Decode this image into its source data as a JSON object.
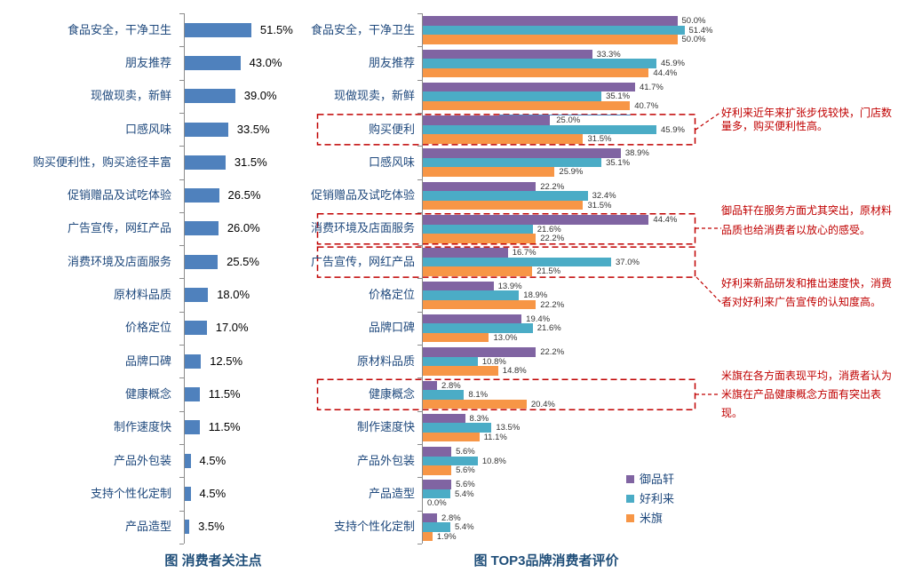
{
  "chart_data": [
    {
      "type": "bar",
      "orientation": "horizontal",
      "title": "图  消费者关注点",
      "categories": [
        "食品安全，干净卫生",
        "朋友推荐",
        "现做现卖，新鲜",
        "口感风味",
        "购买便利性，购买途径丰富",
        "促销赠品及试吃体验",
        "广告宣传，网红产品",
        "消费环境及店面服务",
        "原材料品质",
        "价格定位",
        "品牌口碑",
        "健康概念",
        "制作速度快",
        "产品外包装",
        "支持个性化定制",
        "产品造型"
      ],
      "values": [
        51.5,
        43.0,
        39.0,
        33.5,
        31.5,
        26.5,
        26.0,
        25.5,
        18.0,
        17.0,
        12.5,
        11.5,
        11.5,
        4.5,
        4.5,
        3.5
      ],
      "value_labels": [
        "51.5%",
        "43.0%",
        "39.0%",
        "33.5%",
        "31.5%",
        "26.5%",
        "26.0%",
        "25.5%",
        "18.0%",
        "17.0%",
        "12.5%",
        "11.5%",
        "11.5%",
        "4.5%",
        "4.5%",
        "3.5%"
      ],
      "bar_color": "#4F81BD",
      "grid": false,
      "value_labels_shown": true
    },
    {
      "type": "bar",
      "orientation": "horizontal",
      "title": "图 TOP3品牌消费者评价",
      "categories": [
        "食品安全，干净卫生",
        "朋友推荐",
        "现做现卖，新鲜",
        "购买便利",
        "口感风味",
        "促销赠品及试吃体验",
        "消费环境及店面服务",
        "广告宣传，网红产品",
        "价格定位",
        "品牌口碑",
        "原材料品质",
        "健康概念",
        "制作速度快",
        "产品外包装",
        "产品造型",
        "支持个性化定制"
      ],
      "series": [
        {
          "name": "御品轩",
          "color": "#8064A2",
          "values": [
            50.0,
            33.3,
            41.7,
            25.0,
            38.9,
            22.2,
            44.4,
            16.7,
            13.9,
            19.4,
            22.2,
            2.8,
            8.3,
            5.6,
            5.6,
            2.8
          ],
          "value_labels": [
            "50.0%",
            "33.3%",
            "41.7%",
            "25.0%",
            "38.9%",
            "22.2%",
            "44.4%",
            "16.7%",
            "13.9%",
            "19.4%",
            "22.2%",
            "2.8%",
            "8.3%",
            "5.6%",
            "5.6%",
            "2.8%"
          ]
        },
        {
          "name": "好利来",
          "color": "#4BACC6",
          "values": [
            51.4,
            45.9,
            35.1,
            45.9,
            35.1,
            32.4,
            21.6,
            37.0,
            18.9,
            21.6,
            10.8,
            8.1,
            13.5,
            10.8,
            5.4,
            5.4
          ],
          "value_labels": [
            "51.4%",
            "45.9%",
            "35.1%",
            "45.9%",
            "35.1%",
            "32.4%",
            "21.6%",
            "37.0%",
            "18.9%",
            "21.6%",
            "10.8%",
            "8.1%",
            "13.5%",
            "10.8%",
            "5.4%",
            "5.4%"
          ]
        },
        {
          "name": "米旗",
          "color": "#F79646",
          "values": [
            50.0,
            44.4,
            40.7,
            31.5,
            25.9,
            31.5,
            22.2,
            21.5,
            22.2,
            13.0,
            14.8,
            20.4,
            11.1,
            5.6,
            0.0,
            1.9
          ],
          "value_labels": [
            "50.0%",
            "44.4%",
            "40.7%",
            "31.5%",
            "25.9%",
            "31.5%",
            "22.2%",
            "21.5%",
            "22.2%",
            "13.0%",
            "14.8%",
            "20.4%",
            "11.1%",
            "5.6%",
            "0.0%",
            "1.9%"
          ]
        }
      ],
      "legend": [
        "御品轩",
        "好利来",
        "米旗"
      ],
      "legend_position": "right-bottom",
      "highlighted_categories": [
        "购买便利",
        "消费环境及店面服务",
        "广告宣传，网红产品",
        "健康概念"
      ],
      "grid": false,
      "value_labels_shown": true
    }
  ],
  "annotations": [
    {
      "text": "好利来近年来扩张步伐较快，门店数量多，购买便利性高。"
    },
    {
      "text": "御品轩在服务方面尤其突出，原材料品质也给消费者以放心的感受。"
    },
    {
      "text": "好利来新品研发和推出速度快，消费者对好利来广告宣传的认知度高。"
    },
    {
      "text": "米旗在各方面表现平均，消费者认为米旗在产品健康概念方面有突出表现。"
    }
  ],
  "colors": {
    "left_bar": "#4F81BD",
    "series_purple": "#8064A2",
    "series_teal": "#4BACC6",
    "series_orange": "#F79646",
    "category_label": "#1F497D",
    "title": "#1F4E79",
    "annotation_red": "#C00000",
    "axis_gray": "#8C8C8C"
  }
}
